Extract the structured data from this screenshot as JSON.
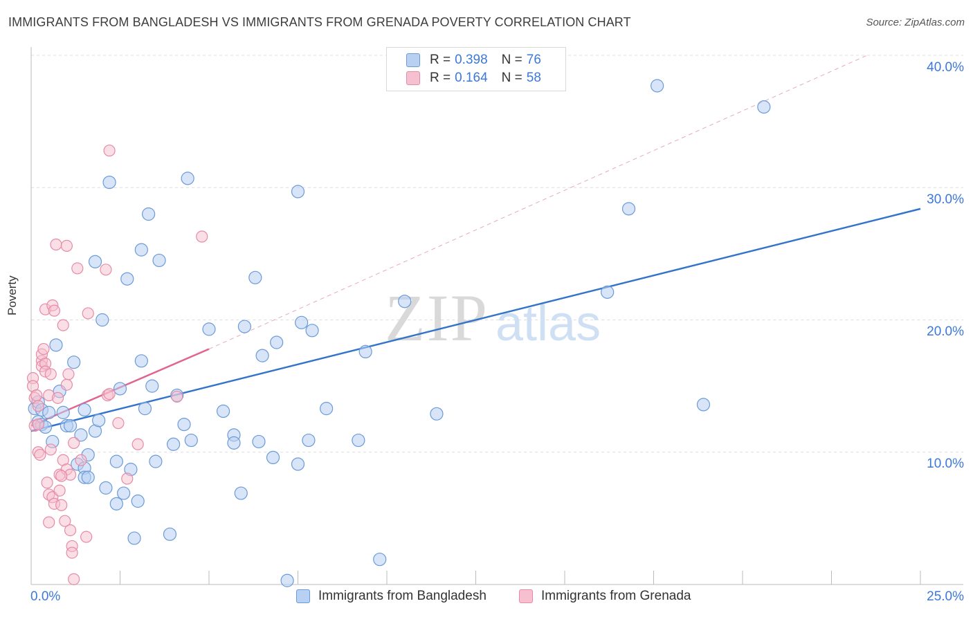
{
  "title": "IMMIGRANTS FROM BANGLADESH VS IMMIGRANTS FROM GRENADA POVERTY CORRELATION CHART",
  "source": "Source: ZipAtlas.com",
  "watermark": {
    "zip": "ZIP",
    "atlas": "atlas"
  },
  "legend_top": {
    "rows": [
      {
        "r_label": "R = ",
        "r_value": "0.398",
        "n_label": "N = ",
        "n_value": "76"
      },
      {
        "r_label": "R = ",
        "r_value": "0.164",
        "n_label": "N = ",
        "n_value": "58"
      }
    ]
  },
  "colors": {
    "blue_fill": "#b8d0f2",
    "blue_stroke": "#6a9ad8",
    "blue_line": "#3274cc",
    "pink_fill": "#f6c0d0",
    "pink_stroke": "#e78aa6",
    "pink_line": "#e06690",
    "grid": "#dddddd",
    "axis_text": "#3b78d8"
  },
  "chart_data": {
    "type": "scatter",
    "title": "IMMIGRANTS FROM BANGLADESH VS IMMIGRANTS FROM GRENADA POVERTY CORRELATION CHART",
    "xlabel": "",
    "ylabel": "Poverty",
    "xlim": [
      0,
      25
    ],
    "ylim": [
      0,
      40
    ],
    "x_tick_labels": [
      "0.0%",
      "25.0%"
    ],
    "y_tick_labels": [
      "10.0%",
      "20.0%",
      "30.0%",
      "40.0%"
    ],
    "y_ticks": [
      10,
      20,
      30,
      40
    ],
    "grid": true,
    "legend_position": "top-center",
    "series": [
      {
        "name": "Immigrants from Bangladesh",
        "color": "#6a9ad8",
        "points": [
          [
            0.1,
            13.3
          ],
          [
            0.2,
            13.8
          ],
          [
            0.2,
            12.3
          ],
          [
            0.3,
            12.1
          ],
          [
            0.3,
            13.2
          ],
          [
            0.4,
            11.9
          ],
          [
            0.5,
            13.0
          ],
          [
            0.6,
            10.8
          ],
          [
            0.7,
            18.1
          ],
          [
            0.8,
            14.6
          ],
          [
            0.9,
            13.0
          ],
          [
            1.0,
            12.0
          ],
          [
            1.1,
            12.0
          ],
          [
            1.2,
            16.8
          ],
          [
            1.3,
            9.1
          ],
          [
            1.4,
            11.3
          ],
          [
            1.5,
            8.8
          ],
          [
            1.5,
            8.1
          ],
          [
            1.6,
            9.8
          ],
          [
            1.6,
            8.1
          ],
          [
            1.8,
            11.6
          ],
          [
            1.8,
            24.4
          ],
          [
            1.9,
            12.4
          ],
          [
            2.0,
            20.0
          ],
          [
            2.1,
            7.3
          ],
          [
            2.2,
            30.4
          ],
          [
            2.4,
            9.3
          ],
          [
            2.4,
            6.1
          ],
          [
            2.5,
            14.8
          ],
          [
            2.6,
            6.9
          ],
          [
            2.7,
            23.1
          ],
          [
            2.8,
            8.7
          ],
          [
            2.9,
            3.5
          ],
          [
            3.0,
            6.3
          ],
          [
            3.1,
            25.3
          ],
          [
            3.1,
            16.9
          ],
          [
            3.2,
            13.3
          ],
          [
            3.3,
            28.0
          ],
          [
            3.4,
            15.0
          ],
          [
            3.5,
            9.3
          ],
          [
            3.6,
            24.5
          ],
          [
            3.9,
            3.8
          ],
          [
            4.0,
            10.6
          ],
          [
            4.1,
            14.3
          ],
          [
            4.3,
            12.1
          ],
          [
            4.4,
            30.7
          ],
          [
            4.5,
            10.9
          ],
          [
            5.0,
            19.3
          ],
          [
            5.4,
            13.1
          ],
          [
            5.7,
            11.3
          ],
          [
            5.7,
            10.7
          ],
          [
            5.9,
            6.9
          ],
          [
            6.0,
            19.5
          ],
          [
            6.3,
            23.2
          ],
          [
            6.4,
            10.8
          ],
          [
            6.5,
            17.3
          ],
          [
            6.8,
            9.6
          ],
          [
            6.9,
            18.3
          ],
          [
            7.2,
            0.3
          ],
          [
            7.5,
            29.7
          ],
          [
            7.5,
            9.1
          ],
          [
            7.6,
            19.8
          ],
          [
            7.8,
            10.9
          ],
          [
            7.9,
            19.2
          ],
          [
            8.3,
            13.3
          ],
          [
            9.2,
            10.9
          ],
          [
            9.4,
            17.6
          ],
          [
            9.8,
            1.9
          ],
          [
            10.5,
            21.4
          ],
          [
            11.4,
            12.9
          ],
          [
            16.2,
            22.1
          ],
          [
            16.8,
            28.4
          ],
          [
            17.6,
            37.7
          ],
          [
            18.9,
            13.6
          ],
          [
            20.6,
            36.1
          ],
          [
            1.5,
            13.2
          ]
        ],
        "trend": {
          "x": [
            0,
            25
          ],
          "y": [
            11.6,
            28.4
          ]
        }
      },
      {
        "name": "Immigrants from Grenada",
        "color": "#e78aa6",
        "points": [
          [
            0.05,
            15.6
          ],
          [
            0.05,
            15.0
          ],
          [
            0.1,
            14.1
          ],
          [
            0.1,
            12.0
          ],
          [
            0.15,
            14.3
          ],
          [
            0.2,
            13.5
          ],
          [
            0.2,
            12.1
          ],
          [
            0.2,
            10.0
          ],
          [
            0.25,
            9.8
          ],
          [
            0.3,
            16.9
          ],
          [
            0.3,
            17.4
          ],
          [
            0.3,
            16.5
          ],
          [
            0.35,
            17.8
          ],
          [
            0.4,
            16.7
          ],
          [
            0.4,
            16.1
          ],
          [
            0.4,
            20.8
          ],
          [
            0.45,
            7.7
          ],
          [
            0.5,
            6.8
          ],
          [
            0.5,
            4.7
          ],
          [
            0.5,
            14.3
          ],
          [
            0.55,
            15.9
          ],
          [
            0.55,
            10.2
          ],
          [
            0.6,
            21.1
          ],
          [
            0.6,
            6.6
          ],
          [
            0.65,
            6.1
          ],
          [
            0.65,
            20.7
          ],
          [
            0.7,
            25.7
          ],
          [
            0.75,
            14.1
          ],
          [
            0.8,
            8.3
          ],
          [
            0.8,
            7.1
          ],
          [
            0.85,
            6.0
          ],
          [
            0.9,
            9.4
          ],
          [
            0.9,
            19.6
          ],
          [
            0.95,
            4.8
          ],
          [
            1.0,
            8.7
          ],
          [
            1.0,
            25.6
          ],
          [
            1.0,
            15.1
          ],
          [
            1.05,
            15.9
          ],
          [
            1.1,
            4.1
          ],
          [
            1.1,
            8.3
          ],
          [
            1.15,
            2.9
          ],
          [
            1.15,
            2.4
          ],
          [
            1.2,
            10.7
          ],
          [
            1.2,
            0.4
          ],
          [
            1.3,
            23.9
          ],
          [
            1.4,
            9.4
          ],
          [
            1.55,
            3.6
          ],
          [
            1.6,
            20.5
          ],
          [
            2.1,
            23.8
          ],
          [
            2.15,
            14.3
          ],
          [
            2.2,
            14.4
          ],
          [
            2.2,
            32.8
          ],
          [
            2.45,
            12.2
          ],
          [
            2.7,
            8.0
          ],
          [
            3.0,
            10.6
          ],
          [
            4.1,
            14.2
          ],
          [
            4.8,
            26.3
          ],
          [
            0.85,
            8.2
          ]
        ],
        "trend": {
          "x": [
            0,
            5.0
          ],
          "y": [
            12.0,
            17.8
          ]
        },
        "trend_extended": {
          "x": [
            5.0,
            23.5
          ],
          "y": [
            17.8,
            40.0
          ]
        }
      }
    ]
  },
  "bottom_legend": [
    {
      "label": "Immigrants from Bangladesh"
    },
    {
      "label": "Immigrants from Grenada"
    }
  ]
}
